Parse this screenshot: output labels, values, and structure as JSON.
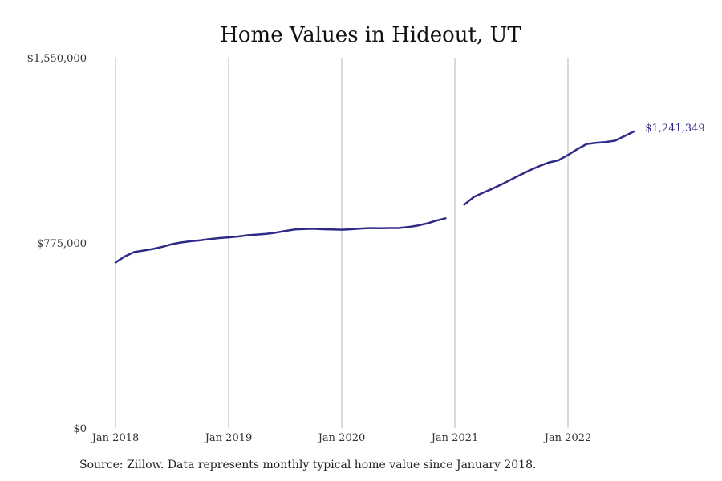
{
  "chart_data": {
    "type": "line",
    "title": "Home Values in Hideout, UT",
    "xlabel": "",
    "ylabel": "",
    "ylim": [
      0,
      1550000
    ],
    "y_ticks": [
      {
        "value": 0,
        "label": "$0"
      },
      {
        "value": 775000,
        "label": "$775,000"
      },
      {
        "value": 1550000,
        "label": "$1,550,000"
      }
    ],
    "x_ticks": [
      {
        "date": "2018-01",
        "label": "Jan 2018"
      },
      {
        "date": "2019-01",
        "label": "Jan 2019"
      },
      {
        "date": "2020-01",
        "label": "Jan 2020"
      },
      {
        "date": "2021-01",
        "label": "Jan 2021"
      },
      {
        "date": "2022-01",
        "label": "Jan 2022"
      }
    ],
    "xlim": [
      "2018-01",
      "2023-01"
    ],
    "grid": "vertical",
    "legend": "none",
    "color": "#2e2a87",
    "end_label": "$1,241,349",
    "series": [
      {
        "segments": [
          [
            {
              "x": "2018-01",
              "y": 693000
            },
            {
              "x": "2018-02",
              "y": 719000
            },
            {
              "x": "2018-03",
              "y": 737000
            },
            {
              "x": "2018-04",
              "y": 743000
            },
            {
              "x": "2018-05",
              "y": 750000
            },
            {
              "x": "2018-06",
              "y": 759000
            },
            {
              "x": "2018-07",
              "y": 770000
            },
            {
              "x": "2018-08",
              "y": 777000
            },
            {
              "x": "2018-09",
              "y": 782000
            },
            {
              "x": "2018-10",
              "y": 786000
            },
            {
              "x": "2018-11",
              "y": 791000
            },
            {
              "x": "2018-12",
              "y": 795000
            },
            {
              "x": "2019-01",
              "y": 798000
            },
            {
              "x": "2019-02",
              "y": 802000
            },
            {
              "x": "2019-03",
              "y": 807000
            },
            {
              "x": "2019-04",
              "y": 810000
            },
            {
              "x": "2019-05",
              "y": 813000
            },
            {
              "x": "2019-06",
              "y": 818000
            },
            {
              "x": "2019-07",
              "y": 825000
            },
            {
              "x": "2019-08",
              "y": 831000
            },
            {
              "x": "2019-09",
              "y": 833000
            },
            {
              "x": "2019-10",
              "y": 834000
            },
            {
              "x": "2019-11",
              "y": 832000
            },
            {
              "x": "2019-12",
              "y": 831000
            },
            {
              "x": "2020-01",
              "y": 830000
            },
            {
              "x": "2020-02",
              "y": 832000
            },
            {
              "x": "2020-03",
              "y": 835000
            },
            {
              "x": "2020-04",
              "y": 837000
            },
            {
              "x": "2020-05",
              "y": 836000
            },
            {
              "x": "2020-06",
              "y": 837000
            },
            {
              "x": "2020-07",
              "y": 837000
            },
            {
              "x": "2020-08",
              "y": 841000
            },
            {
              "x": "2020-09",
              "y": 847000
            },
            {
              "x": "2020-10",
              "y": 856000
            },
            {
              "x": "2020-11",
              "y": 868000
            },
            {
              "x": "2020-12",
              "y": 878000
            }
          ],
          [
            {
              "x": "2021-02",
              "y": 935000
            },
            {
              "x": "2021-03",
              "y": 967000
            },
            {
              "x": "2021-04",
              "y": 985000
            },
            {
              "x": "2021-05",
              "y": 1002000
            },
            {
              "x": "2021-06",
              "y": 1021000
            },
            {
              "x": "2021-07",
              "y": 1041000
            },
            {
              "x": "2021-08",
              "y": 1061000
            },
            {
              "x": "2021-09",
              "y": 1080000
            },
            {
              "x": "2021-10",
              "y": 1097000
            },
            {
              "x": "2021-11",
              "y": 1112000
            },
            {
              "x": "2021-12",
              "y": 1121000
            },
            {
              "x": "2022-01",
              "y": 1143000
            },
            {
              "x": "2022-02",
              "y": 1168000
            },
            {
              "x": "2022-03",
              "y": 1189000
            },
            {
              "x": "2022-04",
              "y": 1194000
            },
            {
              "x": "2022-05",
              "y": 1197000
            },
            {
              "x": "2022-06",
              "y": 1203000
            },
            {
              "x": "2022-07",
              "y": 1222000
            },
            {
              "x": "2022-08",
              "y": 1241349
            }
          ]
        ]
      }
    ]
  },
  "source_note": "Source: Zillow. Data represents monthly typical home value since January 2018."
}
